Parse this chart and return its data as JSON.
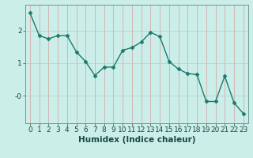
{
  "x": [
    0,
    1,
    2,
    3,
    4,
    5,
    6,
    7,
    8,
    9,
    10,
    11,
    12,
    13,
    14,
    15,
    16,
    17,
    18,
    19,
    20,
    21,
    22,
    23
  ],
  "y": [
    2.55,
    1.85,
    1.75,
    1.85,
    1.85,
    1.35,
    1.05,
    0.62,
    0.88,
    0.88,
    1.4,
    1.48,
    1.65,
    1.95,
    1.82,
    1.05,
    0.82,
    0.68,
    0.65,
    -0.18,
    -0.18,
    0.6,
    -0.22,
    -0.55
  ],
  "line_color": "#1a7a6e",
  "marker": "D",
  "marker_size": 2.5,
  "bg_color": "#cceee8",
  "grid_color_x": "#d4a0a0",
  "grid_color_y": "#a8d4ce",
  "xlabel": "Humidex (Indice chaleur)",
  "yticks": [
    0.0,
    1.0,
    2.0
  ],
  "ytick_labels": [
    "-0",
    "1",
    "2"
  ],
  "ylim": [
    -0.85,
    2.8
  ],
  "xlim": [
    -0.5,
    23.5
  ],
  "xtick_labels": [
    "0",
    "1",
    "2",
    "3",
    "4",
    "5",
    "6",
    "7",
    "8",
    "9",
    "10",
    "11",
    "12",
    "13",
    "14",
    "15",
    "16",
    "17",
    "18",
    "19",
    "20",
    "21",
    "22",
    "23"
  ],
  "xlabel_fontsize": 7.5,
  "tick_fontsize": 6.5,
  "line_width": 1.0,
  "spine_color": "#6a9a94"
}
